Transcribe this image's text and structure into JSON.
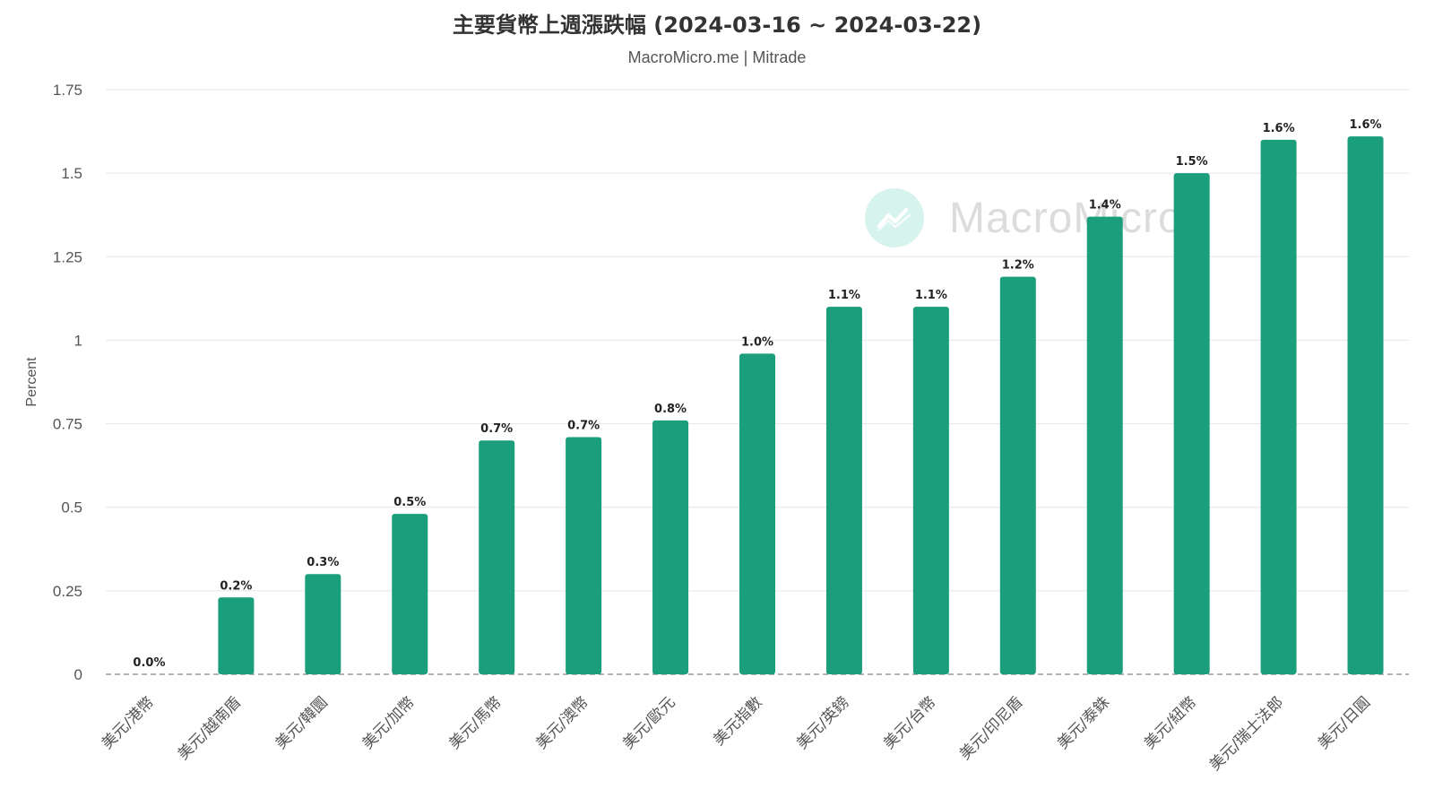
{
  "title": "主要貨幣上週漲跌幅 (2024-03-16 ~ 2024-03-22)",
  "subtitle": "MacroMicro.me | Mitrade",
  "watermark": {
    "text": "MacroMicro",
    "icon": "chart-line-icon"
  },
  "colors": {
    "bar": "#1a9e7c",
    "grid": "#e6e6e6",
    "baseline": "#888888",
    "watermark_circle": "#a7e6d8"
  },
  "chart_data": {
    "type": "bar",
    "categories": [
      "美元/港幣",
      "美元/越南盾",
      "美元/韓圜",
      "美元/加幣",
      "美元/馬幣",
      "美元/澳幣",
      "美元/歐元",
      "美元指數",
      "美元/英鎊",
      "美元/台幣",
      "美元/印尼盾",
      "美元/泰銖",
      "美元/紐幣",
      "美元/瑞士法郎",
      "美元/日圓"
    ],
    "values": [
      0.0,
      0.23,
      0.3,
      0.48,
      0.7,
      0.71,
      0.76,
      0.96,
      1.1,
      1.1,
      1.19,
      1.37,
      1.5,
      1.6,
      1.61
    ],
    "data_labels": [
      "0.0%",
      "0.2%",
      "0.3%",
      "0.5%",
      "0.7%",
      "0.7%",
      "0.8%",
      "1.0%",
      "1.1%",
      "1.1%",
      "1.2%",
      "1.4%",
      "1.5%",
      "1.6%",
      "1.6%"
    ],
    "xlabel": "",
    "ylabel": "Percent",
    "ylim": [
      0,
      1.75
    ],
    "yticks": [
      "0",
      "0.25",
      "0.5",
      "0.75",
      "1",
      "1.25",
      "1.5",
      "1.75"
    ],
    "grid": true,
    "legend": "none"
  }
}
